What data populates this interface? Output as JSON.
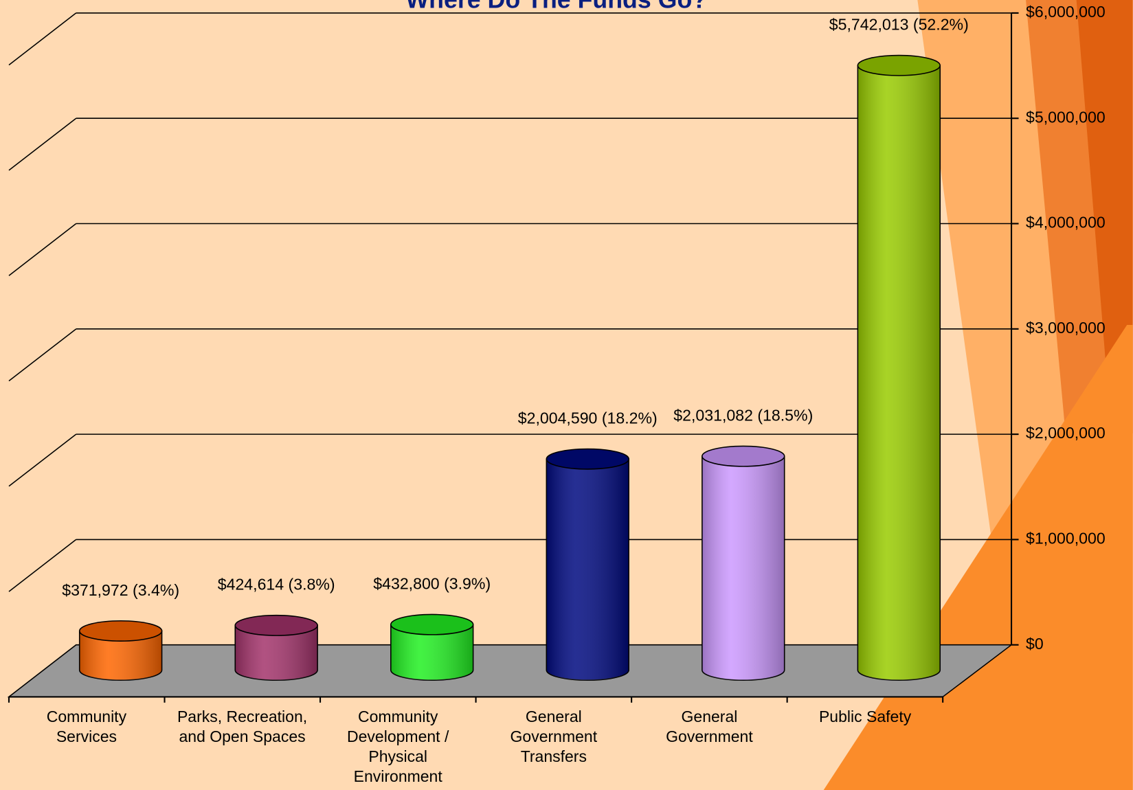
{
  "chart_data": {
    "type": "bar3d",
    "title": "Where Do The Funds Go?",
    "categories": [
      "Community Services",
      "Parks, Recreation, and Open Spaces",
      "Community Development / Physical Environment",
      "General Government Transfers",
      "General Government",
      "Public Safety"
    ],
    "values": [
      371972,
      424614,
      432800,
      2004590,
      2031082,
      5742013
    ],
    "value_labels": [
      "$371,972 (3.4%)",
      "$424,614 (3.8%)",
      "$432,800 (3.9%)",
      "$2,004,590 (18.2%)",
      "$2,031,082 (18.5%)",
      "$5,742,013 (52.2%)"
    ],
    "colors": [
      "#ff6600",
      "#a3336b",
      "#22f022",
      "#000a80",
      "#cc99ff",
      "#99cc00"
    ],
    "ylim": [
      0,
      6000000
    ],
    "yticks": [
      {
        "value": 0,
        "label": "$0"
      },
      {
        "value": 1000000,
        "label": "$1,000,000"
      },
      {
        "value": 2000000,
        "label": "$2,000,000"
      },
      {
        "value": 3000000,
        "label": "$3,000,000"
      },
      {
        "value": 4000000,
        "label": "$4,000,000"
      },
      {
        "value": 5000000,
        "label": "$5,000,000"
      },
      {
        "value": 6000000,
        "label": "$6,000,000"
      }
    ],
    "grid": true
  }
}
